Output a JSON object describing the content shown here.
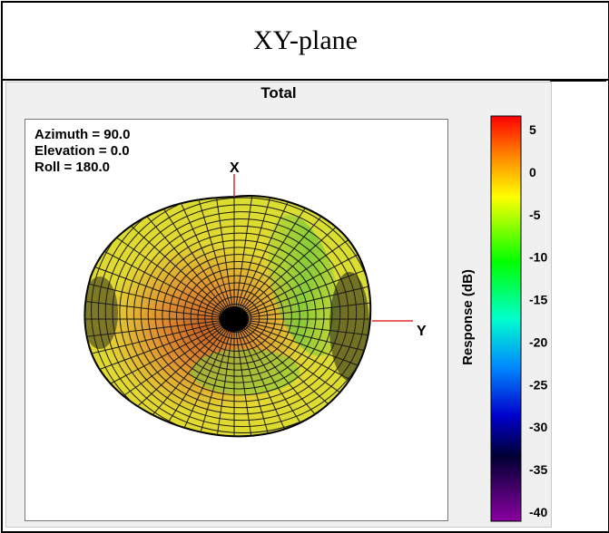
{
  "header": {
    "title": "XY-plane"
  },
  "panel": {
    "title": "Total"
  },
  "view": {
    "azimuth": "Azimuth = 90.0",
    "elevation": "Elevation = 0.0",
    "roll": "Roll = 180.0"
  },
  "axes": {
    "x_label": "X",
    "y_label": "Y"
  },
  "chart_data": {
    "type": "heatmap",
    "title": "Total",
    "colorbar": {
      "label": "Response (dB)",
      "range": [
        -40,
        5
      ],
      "ticks": [
        5,
        0,
        -5,
        -10,
        -15,
        -20,
        -25,
        -30,
        -35,
        -40
      ],
      "tick_labels": [
        "5",
        "0",
        "-5",
        "-10",
        "-15",
        "-20",
        "-25",
        "-30",
        "-35",
        "-40"
      ],
      "colors": [
        "#ff0000",
        "#ff9900",
        "#ffff00",
        "#00ff00",
        "#00ffff",
        "#0000ff",
        "#000044",
        "#8800aa"
      ]
    },
    "surface_colors": {
      "dominant": "#e0e030",
      "warm_region": "#e08a2a",
      "cool_region": "#7cc83c",
      "center": "#000000"
    }
  }
}
